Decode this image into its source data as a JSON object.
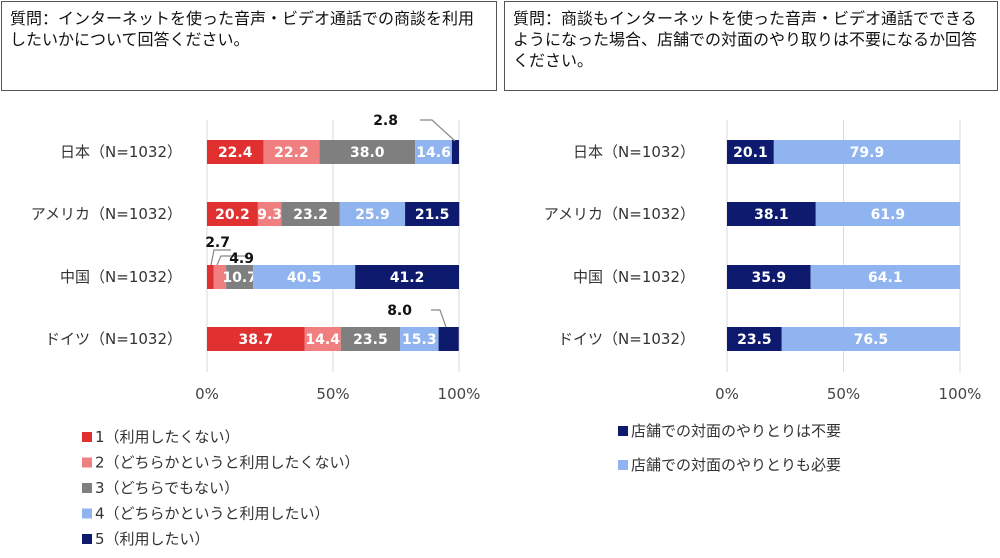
{
  "questions": {
    "left": "質問：インターネットを使った音声・ビデオ通話での商談を利用したいかについて回答ください。",
    "right": "質問：商談もインターネットを使った音声・ビデオ通話でできるようになった場合、店舗での対面のやり取りは不要になるか回答ください。"
  },
  "chart_data": [
    {
      "type": "bar",
      "orientation": "horizontal",
      "stacked": "percent",
      "categories": [
        "日本（N=1032）",
        "アメリカ（N=1032）",
        "中国（N=1032）",
        "ドイツ（N=1032）"
      ],
      "series": [
        {
          "name": "1（利用したくない）",
          "color": "#e03030",
          "values": [
            22.4,
            20.2,
            2.7,
            38.7
          ]
        },
        {
          "name": "2（どちらかというと利用したくない）",
          "color": "#f08080",
          "values": [
            22.2,
            9.3,
            4.9,
            14.4
          ]
        },
        {
          "name": "3（どちらでもない）",
          "color": "#7f7f7f",
          "values": [
            38.0,
            23.2,
            10.7,
            23.5
          ]
        },
        {
          "name": "4（どちらかというと利用したい）",
          "color": "#8fb4ef",
          "values": [
            14.6,
            25.9,
            40.5,
            15.3
          ]
        },
        {
          "name": "5（利用したい）",
          "color": "#0d1a6e",
          "values": [
            2.8,
            21.5,
            41.2,
            8.0
          ]
        }
      ],
      "xticks": [
        "0%",
        "50%",
        "100%"
      ],
      "xlim": [
        0,
        100
      ],
      "grid": true,
      "legend": "bottom"
    },
    {
      "type": "bar",
      "orientation": "horizontal",
      "stacked": "percent",
      "categories": [
        "日本（N=1032）",
        "アメリカ（N=1032）",
        "中国（N=1032）",
        "ドイツ（N=1032）"
      ],
      "series": [
        {
          "name": "店舗での対面のやりとりは不要",
          "color": "#0d1a6e",
          "values": [
            20.1,
            38.1,
            35.9,
            23.5
          ]
        },
        {
          "name": "店舗での対面のやりとりも必要",
          "color": "#8fb4ef",
          "values": [
            79.9,
            61.9,
            64.1,
            76.5
          ]
        }
      ],
      "xticks": [
        "0%",
        "50%",
        "100%"
      ],
      "xlim": [
        0,
        100
      ],
      "grid": true,
      "legend": "bottom"
    }
  ]
}
